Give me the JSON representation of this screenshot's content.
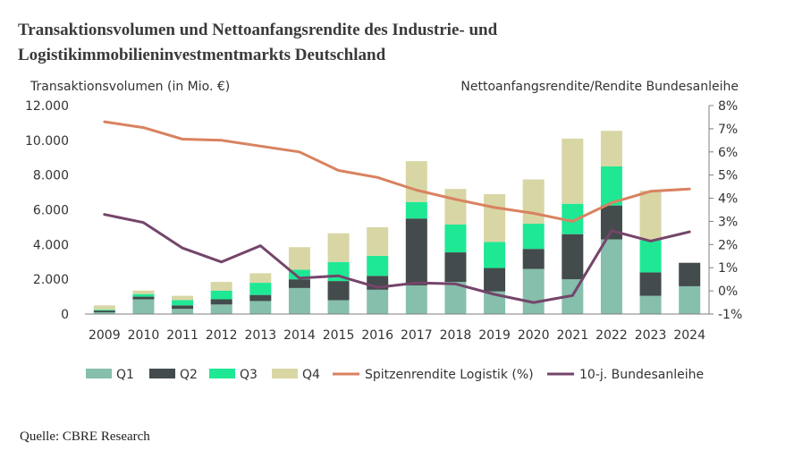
{
  "title": "Transaktionsvolumen und Nettoanfangsrendite des Industrie- und Logistikimmobilieninvestmentmarkts Deutschland",
  "source": "Quelle: CBRE Research",
  "colors": {
    "Q1": "#86bfac",
    "Q2": "#434b4c",
    "Q3": "#1fe895",
    "Q4": "#d8d6a5",
    "spitzenrendite": "#d98260",
    "bundesanleihe": "#74456b"
  },
  "chart_data": {
    "type": "bar",
    "stacked": true,
    "xlabel": "",
    "ylabel": "Transaktionsvolumen (in Mio. €)",
    "y2label": "Nettoanfangsrendite/Rendite Bundesanleihe",
    "ylim": [
      0,
      12000
    ],
    "y2lim": [
      -1,
      8
    ],
    "y_ticks": [
      "0",
      "2.000",
      "4.000",
      "6.000",
      "8.000",
      "10.000",
      "12.000"
    ],
    "y2_ticks": [
      "-1%",
      "0%",
      "1%",
      "2%",
      "3%",
      "4%",
      "5%",
      "6%",
      "7%",
      "8%"
    ],
    "grid": false,
    "legend_position": "bottom",
    "categories": [
      "2009",
      "2010",
      "2011",
      "2012",
      "2013",
      "2014",
      "2015",
      "2016",
      "2017",
      "2018",
      "2019",
      "2020",
      "2021",
      "2022",
      "2023",
      "2024"
    ],
    "series": [
      {
        "name": "Q1",
        "type": "bar",
        "axis": "left",
        "values": [
          100,
          850,
          300,
          550,
          750,
          1500,
          800,
          1400,
          1650,
          1850,
          1300,
          2600,
          2000,
          4300,
          1050,
          1600
        ]
      },
      {
        "name": "Q2",
        "type": "bar",
        "axis": "left",
        "values": [
          100,
          150,
          200,
          300,
          350,
          500,
          1100,
          800,
          3850,
          1700,
          1350,
          1150,
          2600,
          1950,
          1350,
          1350
        ]
      },
      {
        "name": "Q3",
        "type": "bar",
        "axis": "left",
        "values": [
          50,
          150,
          300,
          500,
          700,
          550,
          1100,
          1150,
          950,
          1600,
          1500,
          1450,
          1750,
          2250,
          1850,
          0
        ]
      },
      {
        "name": "Q4",
        "type": "bar",
        "axis": "left",
        "values": [
          250,
          200,
          250,
          500,
          550,
          1300,
          1650,
          1650,
          2350,
          2050,
          2750,
          2550,
          3750,
          2050,
          2850,
          0
        ]
      },
      {
        "name": "Spitzenrendite Logistik (%)",
        "type": "line",
        "axis": "right",
        "values": [
          7.3,
          7.05,
          6.55,
          6.5,
          6.25,
          6.0,
          5.2,
          4.9,
          4.35,
          3.95,
          3.6,
          3.35,
          3.0,
          3.8,
          4.3,
          4.4
        ]
      },
      {
        "name": "10-j. Bundesanleihe",
        "type": "line",
        "axis": "right",
        "values": [
          3.3,
          2.95,
          1.85,
          1.25,
          1.95,
          0.55,
          0.65,
          0.15,
          0.35,
          0.3,
          -0.15,
          -0.5,
          -0.2,
          2.6,
          2.15,
          2.55
        ]
      }
    ]
  }
}
